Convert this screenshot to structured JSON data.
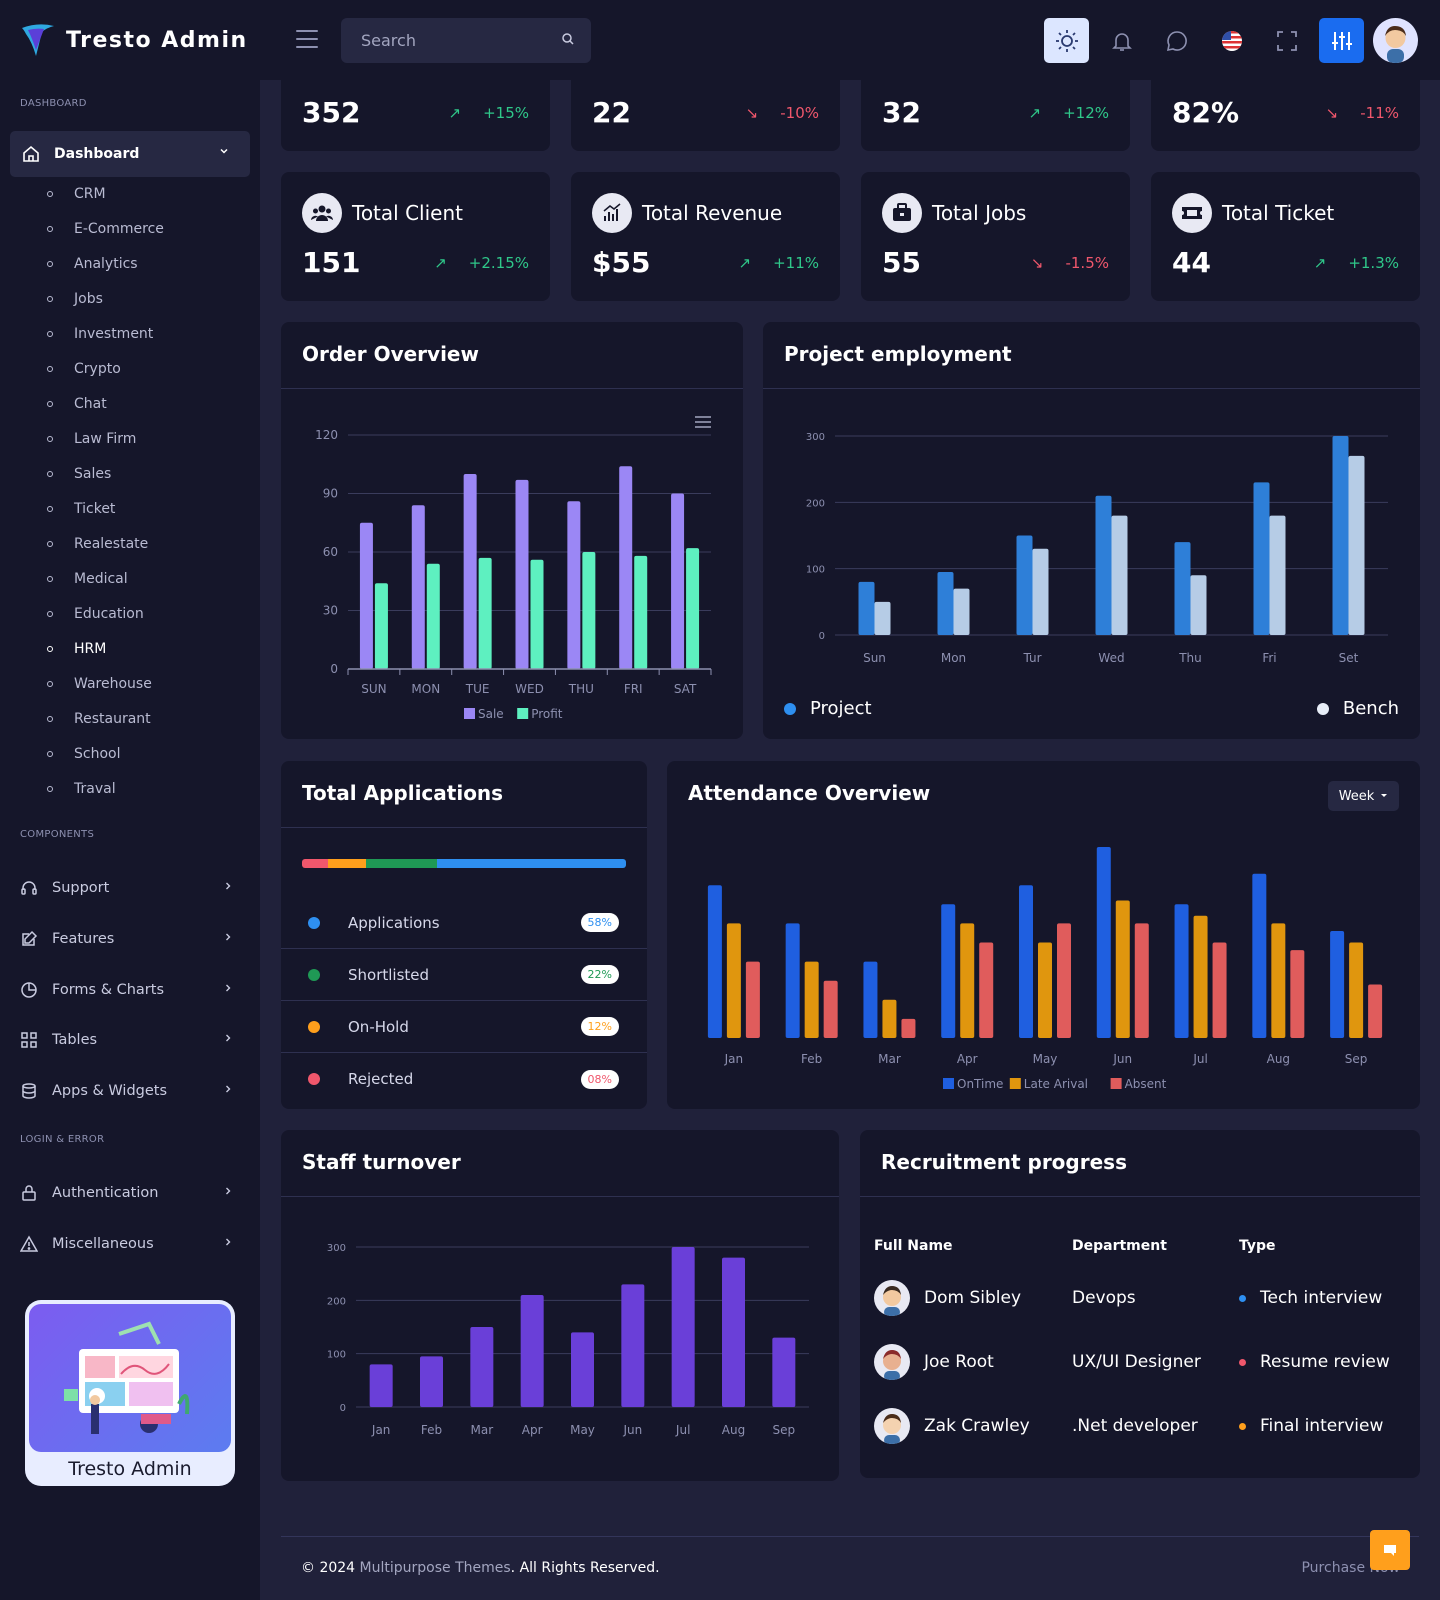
{
  "brand": {
    "name": "Tresto Admin"
  },
  "search": {
    "placeholder": "Search"
  },
  "sidebar": {
    "section_dashboard": "DASHBOARD",
    "dashboard_label": "Dashboard",
    "sub_items": [
      "CRM",
      "E-Commerce",
      "Analytics",
      "Jobs",
      "Investment",
      "Crypto",
      "Chat",
      "Law Firm",
      "Sales",
      "Ticket",
      "Realestate",
      "Medical",
      "Education",
      "HRM",
      "Warehouse",
      "Restaurant",
      "School",
      "Traval"
    ],
    "active_sub": "HRM",
    "section_components": "COMPONENTS",
    "components": [
      "Support",
      "Features",
      "Forms & Charts",
      "Tables",
      "Apps & Widgets"
    ],
    "section_login": "LOGIN & ERROR",
    "login_items": [
      "Authentication",
      "Miscellaneous"
    ],
    "promo_title": "Tresto Admin"
  },
  "top_stats": [
    {
      "value": "352",
      "trend": "+15%",
      "dir": "up"
    },
    {
      "value": "22",
      "trend": "-10%",
      "dir": "down"
    },
    {
      "value": "32",
      "trend": "+12%",
      "dir": "up"
    },
    {
      "value": "82%",
      "trend": "-11%",
      "dir": "down"
    }
  ],
  "stats": [
    {
      "title": "Total Client",
      "value": "151",
      "trend": "+2.15%",
      "dir": "up",
      "icon": "users-icon"
    },
    {
      "title": "Total Revenue",
      "value": "$55",
      "trend": "+11%",
      "dir": "up",
      "icon": "revenue-icon"
    },
    {
      "title": "Total Jobs",
      "value": "55",
      "trend": "-1.5%",
      "dir": "down",
      "icon": "briefcase-icon"
    },
    {
      "title": "Total Ticket",
      "value": "44",
      "trend": "+1.3%",
      "dir": "up",
      "icon": "ticket-icon"
    }
  ],
  "cards": {
    "order_overview": "Order Overview",
    "project_employment": "Project employment",
    "total_applications": "Total Applications",
    "attendance_overview": "Attendance Overview",
    "staff_turnover": "Staff turnover",
    "recruitment_progress": "Recruitment progress",
    "week": "Week"
  },
  "project_legend": {
    "project": "Project",
    "bench": "Bench"
  },
  "applications": [
    {
      "label": "Applications",
      "pct": "58%",
      "color": "#2e8ff0"
    },
    {
      "label": "Shortlisted",
      "pct": "22%",
      "color": "#1f9955"
    },
    {
      "label": "On-Hold",
      "pct": "12%",
      "color": "#ff9f1c"
    },
    {
      "label": "Rejected",
      "pct": "08%",
      "color": "#f0576c"
    }
  ],
  "recruitment": {
    "headers": {
      "name": "Full Name",
      "department": "Department",
      "type": "Type"
    },
    "rows": [
      {
        "name": "Dom Sibley",
        "department": "Devops",
        "type": "Tech interview",
        "color": "#2e8ff0"
      },
      {
        "name": "Joe Root",
        "department": "UX/UI Designer",
        "type": "Resume review",
        "color": "#f0576c"
      },
      {
        "name": "Zak Crawley",
        "department": ".Net developer",
        "type": "Final interview",
        "color": "#ff9f1c"
      }
    ]
  },
  "footer": {
    "year": "© 2024 ",
    "link": "Multipurpose Themes",
    "rights": ". All Rights Reserved.",
    "purchase": "Purchase Now"
  },
  "chart_data": [
    {
      "type": "bar",
      "title": "Order Overview",
      "categories": [
        "SUN",
        "MON",
        "TUE",
        "WED",
        "THU",
        "FRI",
        "SAT"
      ],
      "series": [
        {
          "name": "Sale",
          "values": [
            75,
            84,
            100,
            97,
            86,
            104,
            90
          ],
          "color": "#9b87f5"
        },
        {
          "name": "Profit",
          "values": [
            44,
            54,
            57,
            56,
            60,
            58,
            62
          ],
          "color": "#5ef0c0"
        }
      ],
      "ylim": [
        0,
        120
      ],
      "yticks": [
        0,
        30,
        60,
        90,
        120
      ],
      "legend": "bottom"
    },
    {
      "type": "bar",
      "title": "Project employment",
      "categories": [
        "Sun",
        "Mon",
        "Tur",
        "Wed",
        "Thu",
        "Fri",
        "Set"
      ],
      "series": [
        {
          "name": "Project",
          "values": [
            80,
            95,
            150,
            210,
            140,
            230,
            300
          ],
          "color": "#2e7fd8"
        },
        {
          "name": "Bench",
          "values": [
            50,
            70,
            130,
            180,
            90,
            180,
            270
          ],
          "color": "#b6cce6"
        }
      ],
      "ylim": [
        0,
        300
      ],
      "yticks": [
        0,
        100,
        200,
        300
      ],
      "legend": "bottom"
    },
    {
      "type": "bar",
      "title": "Attendance Overview",
      "categories": [
        "Jan",
        "Feb",
        "Mar",
        "Apr",
        "May",
        "Jun",
        "Jul",
        "Aug",
        "Sep"
      ],
      "series": [
        {
          "name": "OnTime",
          "values": [
            80,
            60,
            40,
            70,
            80,
            100,
            70,
            86,
            56
          ],
          "color": "#1f5fe0"
        },
        {
          "name": "Late Arival",
          "values": [
            60,
            40,
            20,
            60,
            50,
            72,
            64,
            60,
            50
          ],
          "color": "#e0960e"
        },
        {
          "name": "Absent",
          "values": [
            40,
            30,
            10,
            50,
            60,
            60,
            50,
            46,
            28
          ],
          "color": "#e05c5c"
        }
      ],
      "ylim": [
        0,
        100
      ],
      "legend": "bottom"
    },
    {
      "type": "bar",
      "title": "Staff turnover",
      "categories": [
        "Jan",
        "Feb",
        "Mar",
        "Apr",
        "May",
        "Jun",
        "Jul",
        "Aug",
        "Sep"
      ],
      "series": [
        {
          "values": [
            80,
            95,
            150,
            210,
            140,
            230,
            300,
            280,
            130
          ],
          "color": "#6a3fd8"
        }
      ],
      "ylim": [
        0,
        300
      ],
      "yticks": [
        0,
        100,
        200,
        300
      ]
    }
  ]
}
